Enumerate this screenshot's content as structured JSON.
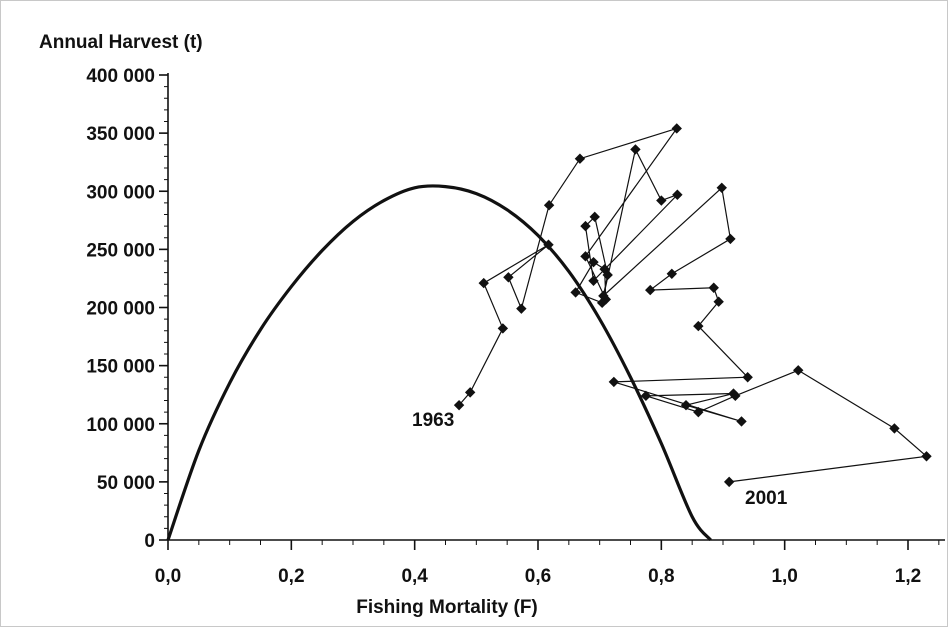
{
  "chart_data": {
    "type": "line",
    "title": "",
    "ylabel": "Annual Harvest (t)",
    "xlabel": "Fishing Mortality (F)",
    "xlim": [
      0,
      1.26
    ],
    "ylim": [
      0,
      400000
    ],
    "x_ticks": [
      "0,0",
      "0,2",
      "0,4",
      "0,6",
      "0,8",
      "1,0",
      "1,2"
    ],
    "x_tick_values": [
      0,
      0.2,
      0.4,
      0.6,
      0.8,
      1.0,
      1.2
    ],
    "y_ticks": [
      "0",
      "50 000",
      "100 000",
      "150 000",
      "200 000",
      "250 000",
      "300 000",
      "350 000",
      "400 000"
    ],
    "y_tick_values": [
      0,
      50000,
      100000,
      150000,
      200000,
      250000,
      300000,
      350000,
      400000
    ],
    "grid": false,
    "series": [
      {
        "style": "curve",
        "x": [
          0,
          0.05,
          0.1,
          0.15,
          0.2,
          0.25,
          0.3,
          0.35,
          0.4,
          0.45,
          0.5,
          0.55,
          0.6,
          0.65,
          0.7,
          0.75,
          0.8,
          0.85,
          0.88
        ],
        "y": [
          0,
          77000,
          135000,
          181000,
          218000,
          249000,
          274000,
          292000,
          303000,
          304000,
          298000,
          284000,
          262000,
          231000,
          190000,
          140000,
          83000,
          20000,
          0
        ]
      },
      {
        "style": "points-connected",
        "x": [
          0.472,
          0.49,
          0.543,
          0.512,
          0.617,
          0.552,
          0.573,
          0.618,
          0.668,
          0.825,
          0.677,
          0.71,
          0.708,
          0.69,
          0.661,
          0.704,
          0.758,
          0.8,
          0.826,
          0.69,
          0.677,
          0.692,
          0.713,
          0.706,
          0.898,
          0.912,
          0.817,
          0.782,
          0.885,
          0.893,
          0.86,
          0.94,
          0.723,
          0.93,
          0.84,
          0.917,
          0.775,
          0.86,
          0.92,
          1.022,
          1.178,
          1.23,
          0.91
        ],
        "y": [
          116000,
          127000,
          182000,
          221000,
          254000,
          226000,
          199000,
          288000,
          328000,
          354000,
          244000,
          207000,
          233000,
          239000,
          213000,
          204000,
          336000,
          292000,
          297000,
          223000,
          270000,
          278000,
          228000,
          210000,
          303000,
          259000,
          229000,
          215000,
          217000,
          205000,
          184000,
          140000,
          136000,
          102000,
          116000,
          126000,
          124000,
          110000,
          124000,
          146000,
          96000,
          72000,
          50000
        ]
      }
    ],
    "annotations": [
      {
        "text": "1963",
        "x": 0.43,
        "y": 98000
      },
      {
        "text": "2001",
        "x": 0.97,
        "y": 31000
      }
    ]
  }
}
